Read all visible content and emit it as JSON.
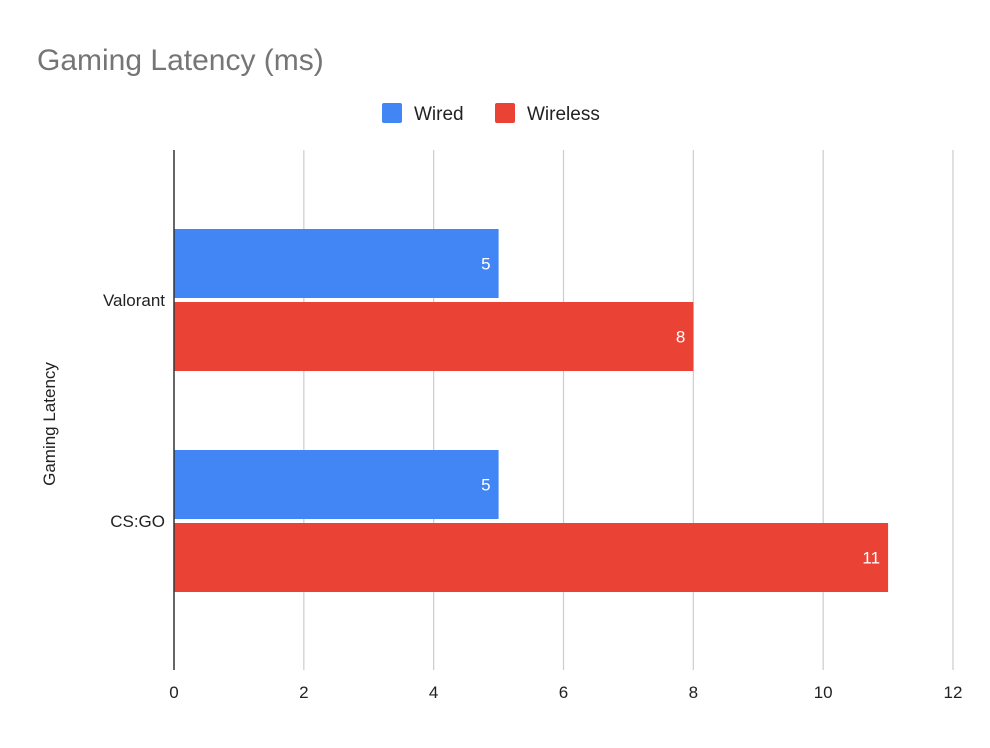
{
  "chart_data": {
    "type": "bar",
    "orientation": "horizontal",
    "title": "Gaming Latency (ms)",
    "xlabel": "",
    "ylabel": "Gaming Latency",
    "categories": [
      "Valorant",
      "CS:GO"
    ],
    "series": [
      {
        "name": "Wired",
        "color": "#4285f4",
        "values": [
          5,
          5
        ]
      },
      {
        "name": "Wireless",
        "color": "#ea4335",
        "values": [
          8,
          11
        ]
      }
    ],
    "xlim": [
      0,
      12
    ],
    "xticks": [
      "0",
      "2",
      "4",
      "6",
      "8",
      "10",
      "12"
    ],
    "data_labels": true,
    "grid": true,
    "legend_position": "top-center"
  }
}
